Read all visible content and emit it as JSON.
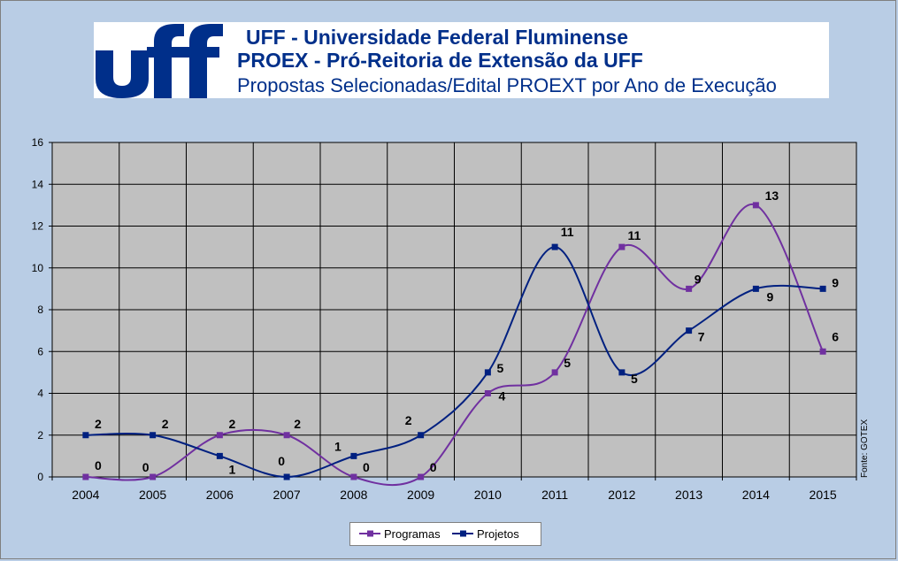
{
  "header": {
    "line1": "UFF - Universidade Federal Fluminense",
    "line2": "PROEX - Pró-Reitoria de Extensão da UFF",
    "line3": "Propostas Selecionadas/Edital PROEXT por Ano de Execução"
  },
  "source_note": "Fonte: GOTEX",
  "colors": {
    "programas": "#7030a0",
    "projetos": "#002080",
    "plot_background": "#c0c0c0",
    "chart_background": "#b9cde5",
    "logo": "#002f8a"
  },
  "chart_data": {
    "type": "line",
    "x": [
      "2004",
      "2005",
      "2006",
      "2007",
      "2008",
      "2009",
      "2010",
      "2011",
      "2012",
      "2013",
      "2014",
      "2015"
    ],
    "series": [
      {
        "name": "Programas",
        "values": [
          0,
          0,
          2,
          2,
          0,
          0,
          4,
          5,
          11,
          9,
          13,
          6
        ]
      },
      {
        "name": "Projetos",
        "values": [
          2,
          2,
          1,
          0,
          1,
          2,
          5,
          11,
          5,
          7,
          9,
          9
        ]
      }
    ],
    "yticks": [
      "0",
      "2",
      "4",
      "6",
      "8",
      "10",
      "12",
      "14",
      "16"
    ],
    "ylim": [
      0,
      16
    ],
    "smoothed": true,
    "grid": true,
    "legend_position": "bottom",
    "data_labels": true
  }
}
